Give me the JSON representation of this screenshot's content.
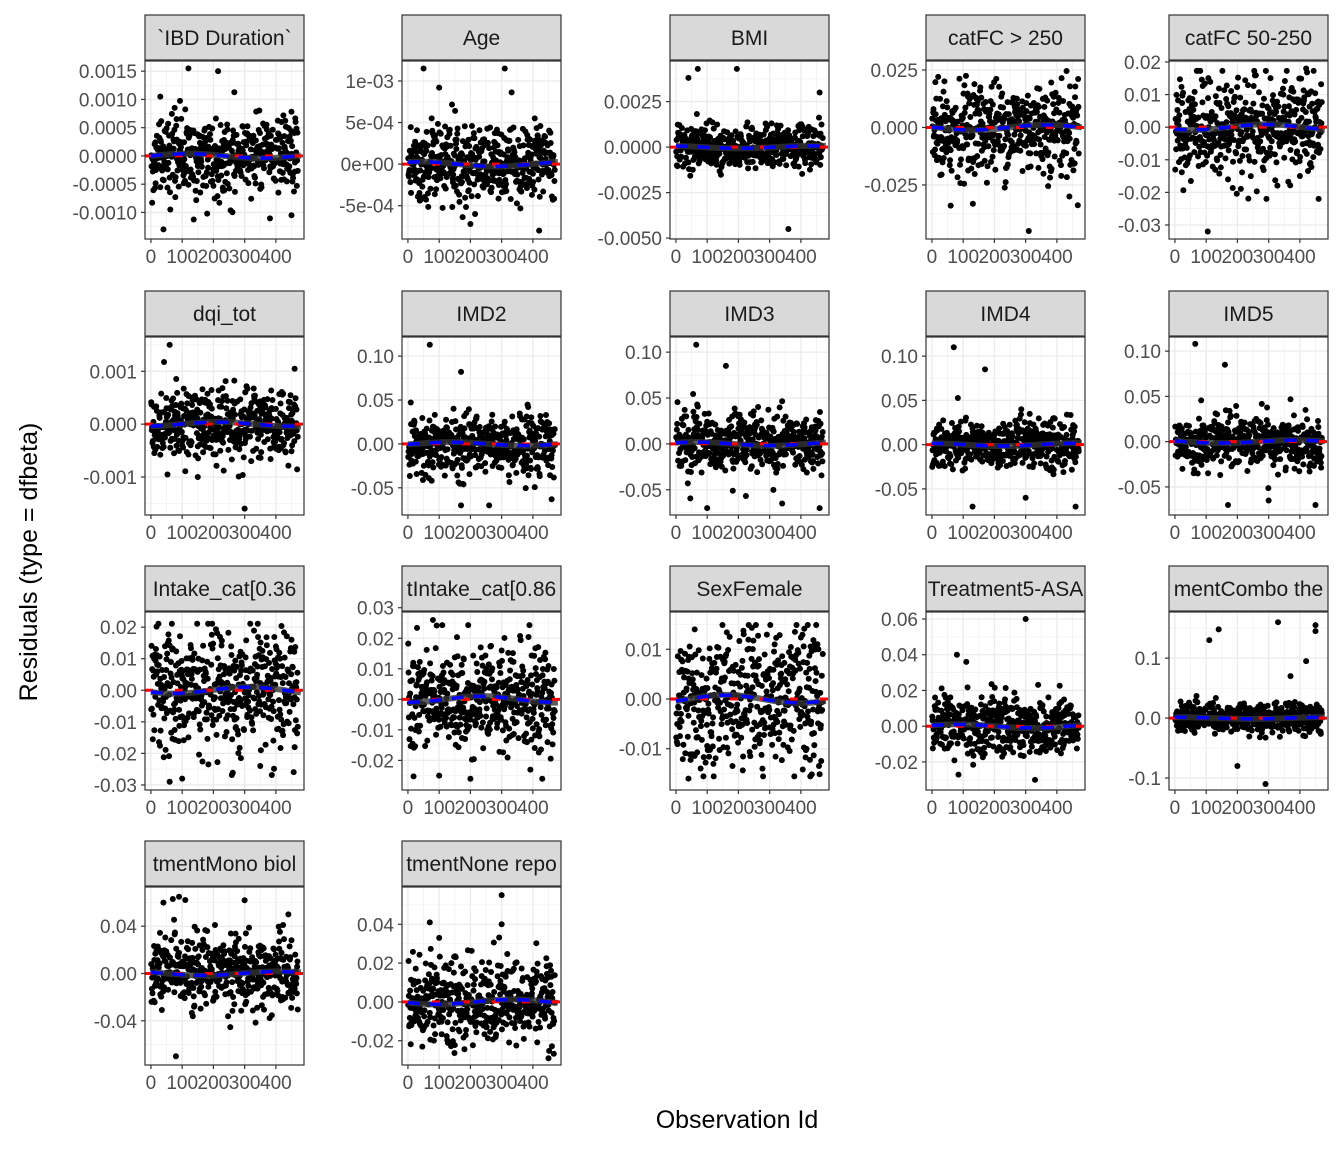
{
  "chart_data": {
    "type": "scatter",
    "xlabel": "Observation Id",
    "ylabel": "Residuals (type = dfbeta)",
    "n_obs": 470,
    "xlim": [
      -19,
      490
    ],
    "xticks": [
      0,
      100,
      200,
      300,
      400
    ],
    "xtick_labels": [
      "0",
      "100",
      "200",
      "300",
      "400"
    ],
    "grid": true,
    "reference_line": {
      "y": 0,
      "color": "#ff0000",
      "style": "dashed"
    },
    "smooth_color": "#0000ff",
    "loess_color": "#333333",
    "panels": [
      {
        "label": "`IBD Duration`",
        "ylim": [
          -0.00147,
          0.00168
        ],
        "yticks": [
          0.0015,
          0.001,
          0.0005,
          0,
          -0.0005,
          -0.001
        ],
        "ytick_labels": [
          "0.0015",
          "0.0010",
          "0.0005",
          "0.0000",
          "-0.0005",
          "-0.0010"
        ],
        "sd": 0.00035,
        "outliers": [
          [
            40,
            -0.0013
          ],
          [
            120,
            0.00155
          ],
          [
            215,
            0.0015
          ],
          [
            450,
            -0.00105
          ],
          [
            30,
            0.00105
          ]
        ]
      },
      {
        "label": "Age",
        "ylim": [
          -0.0009,
          0.00124
        ],
        "yticks": [
          0.001,
          0.0005,
          0,
          -0.0005
        ],
        "ytick_labels": [
          "1e-03",
          "5e-04",
          "0e+00",
          "-5e-04"
        ],
        "sd": 0.00025,
        "outliers": [
          [
            50,
            0.00115
          ],
          [
            310,
            0.00115
          ],
          [
            100,
            0.00092
          ],
          [
            420,
            -0.0008
          ],
          [
            200,
            -0.00072
          ]
        ]
      },
      {
        "label": "BMI",
        "ylim": [
          -0.00505,
          0.00473
        ],
        "yticks": [
          0.0025,
          0,
          -0.0025,
          -0.005
        ],
        "ytick_labels": [
          "0.0025",
          "0.0000",
          "-0.0025",
          "-0.0050"
        ],
        "sd": 0.0006,
        "outliers": [
          [
            70,
            0.0043
          ],
          [
            195,
            0.0043
          ],
          [
            360,
            -0.0045
          ],
          [
            460,
            0.003
          ],
          [
            40,
            0.0038
          ]
        ]
      },
      {
        "label": "catFC > 250",
        "ylim": [
          -0.0485,
          0.0289
        ],
        "yticks": [
          0.025,
          0,
          -0.025
        ],
        "ytick_labels": [
          "0.025",
          "0.000",
          "-0.025"
        ],
        "sd": 0.01,
        "outliers": [
          [
            310,
            -0.045
          ],
          [
            60,
            -0.034
          ],
          [
            20,
            0.022
          ],
          [
            440,
            -0.03
          ]
        ]
      },
      {
        "label": "catFC 50-250",
        "ylim": [
          -0.0343,
          0.0203
        ],
        "yticks": [
          0.02,
          0.01,
          0,
          -0.01,
          -0.02,
          -0.03
        ],
        "ytick_labels": [
          "0.02",
          "0.01",
          "0.00",
          "-0.01",
          "-0.02",
          "-0.03"
        ],
        "sd": 0.0075,
        "outliers": [
          [
            105,
            -0.032
          ],
          [
            460,
            -0.022
          ],
          [
            420,
            0.018
          ]
        ]
      },
      {
        "label": "dqi_tot",
        "ylim": [
          -0.00172,
          0.00165
        ],
        "yticks": [
          0.001,
          0,
          -0.001
        ],
        "ytick_labels": [
          "0.001",
          "0.000",
          "-0.001"
        ],
        "sd": 0.00035,
        "outliers": [
          [
            60,
            0.0015
          ],
          [
            300,
            -0.0016
          ],
          [
            150,
            -0.001
          ],
          [
            460,
            0.00105
          ]
        ]
      },
      {
        "label": "IMD2",
        "ylim": [
          -0.081,
          0.1218
        ],
        "yticks": [
          0.1,
          0.05,
          0,
          -0.05
        ],
        "ytick_labels": [
          "0.10",
          "0.05",
          "0.00",
          "-0.05"
        ],
        "sd": 0.017,
        "outliers": [
          [
            70,
            0.113
          ],
          [
            170,
            0.082
          ],
          [
            170,
            -0.07
          ],
          [
            460,
            -0.063
          ],
          [
            260,
            -0.07
          ]
        ]
      },
      {
        "label": "IMD3",
        "ylim": [
          -0.0775,
          0.1165
        ],
        "yticks": [
          0.1,
          0.05,
          0,
          -0.05
        ],
        "ytick_labels": [
          "0.10",
          "0.05",
          "0.00",
          "-0.05"
        ],
        "sd": 0.017,
        "outliers": [
          [
            65,
            0.108
          ],
          [
            160,
            0.085
          ],
          [
            100,
            -0.07
          ],
          [
            460,
            -0.07
          ],
          [
            340,
            -0.065
          ]
        ]
      },
      {
        "label": "IMD4",
        "ylim": [
          -0.0795,
          0.1216
        ],
        "yticks": [
          0.1,
          0.05,
          0,
          -0.05
        ],
        "ytick_labels": [
          "0.10",
          "0.05",
          "0.00",
          "-0.05"
        ],
        "sd": 0.014,
        "outliers": [
          [
            70,
            0.11
          ],
          [
            170,
            0.085
          ],
          [
            130,
            -0.07
          ],
          [
            460,
            -0.07
          ],
          [
            300,
            -0.06
          ]
        ]
      },
      {
        "label": "IMD5",
        "ylim": [
          -0.081,
          0.1156
        ],
        "yticks": [
          0.1,
          0.05,
          0,
          -0.05
        ],
        "ytick_labels": [
          "0.10",
          "0.05",
          "0.00",
          "-0.05"
        ],
        "sd": 0.014,
        "outliers": [
          [
            65,
            0.108
          ],
          [
            160,
            0.085
          ],
          [
            170,
            -0.07
          ],
          [
            450,
            -0.07
          ],
          [
            300,
            -0.065
          ]
        ]
      },
      {
        "label": "Intake_cat[0.36",
        "ylim": [
          -0.0316,
          0.0248
        ],
        "yticks": [
          0.02,
          0.01,
          0,
          -0.01,
          -0.02,
          -0.03
        ],
        "ytick_labels": [
          "0.02",
          "0.01",
          "0.00",
          "-0.01",
          "-0.02",
          "-0.03"
        ],
        "sd": 0.009,
        "outliers": [
          [
            60,
            -0.029
          ],
          [
            100,
            -0.028
          ],
          [
            350,
            -0.024
          ],
          [
            460,
            -0.018
          ]
        ]
      },
      {
        "label": "tIntake_cat[0.86",
        "ylim": [
          -0.0297,
          0.0286
        ],
        "yticks": [
          0.03,
          0.02,
          0.01,
          0,
          -0.01,
          -0.02
        ],
        "ytick_labels": [
          "0.03",
          "0.02",
          "0.01",
          "0.00",
          "-0.01",
          "-0.02"
        ],
        "sd": 0.009,
        "outliers": [
          [
            100,
            -0.025
          ],
          [
            200,
            -0.026
          ],
          [
            430,
            -0.026
          ],
          [
            80,
            0.026
          ]
        ]
      },
      {
        "label": "SexFemale",
        "ylim": [
          -0.0183,
          0.0175
        ],
        "yticks": [
          0.01,
          0,
          -0.01
        ],
        "ytick_labels": [
          "0.01",
          "0.00",
          "-0.01"
        ],
        "sd": 0.007,
        "outliers": [
          [
            60,
            0.014
          ],
          [
            40,
            -0.016
          ]
        ]
      },
      {
        "label": "Treatment5-ASA",
        "ylim": [
          -0.0357,
          0.0639
        ],
        "yticks": [
          0.06,
          0.04,
          0.02,
          0,
          -0.02
        ],
        "ytick_labels": [
          "0.06",
          "0.04",
          "0.02",
          "0.00",
          "-0.02"
        ],
        "sd": 0.009,
        "outliers": [
          [
            300,
            0.06
          ],
          [
            80,
            0.04
          ],
          [
            110,
            0.036
          ],
          [
            330,
            -0.03
          ]
        ]
      },
      {
        "label": "mentCombo the",
        "ylim": [
          -0.12,
          0.177
        ],
        "yticks": [
          0.1,
          0,
          -0.1
        ],
        "ytick_labels": [
          "0.1",
          "0.0",
          "-0.1"
        ],
        "sd": 0.012,
        "outliers": [
          [
            140,
            0.148
          ],
          [
            110,
            0.13
          ],
          [
            330,
            0.16
          ],
          [
            450,
            0.155
          ],
          [
            450,
            0.145
          ],
          [
            420,
            0.095
          ],
          [
            290,
            -0.11
          ],
          [
            200,
            -0.08
          ],
          [
            370,
            0.07
          ]
        ]
      },
      {
        "label": "tmentMono biol",
        "ylim": [
          -0.0774,
          0.0732
        ],
        "yticks": [
          0.04,
          0,
          -0.04
        ],
        "ytick_labels": [
          "0.04",
          "0.00",
          "-0.04"
        ],
        "sd": 0.015,
        "outliers": [
          [
            70,
            0.063
          ],
          [
            90,
            0.065
          ],
          [
            40,
            0.06
          ],
          [
            440,
            0.05
          ],
          [
            80,
            -0.07
          ],
          [
            300,
            0.062
          ]
        ]
      },
      {
        "label": "tmentNone repo",
        "ylim": [
          -0.0325,
          0.0592
        ],
        "yticks": [
          0.04,
          0.02,
          0,
          -0.02
        ],
        "ytick_labels": [
          "0.04",
          "0.02",
          "0.00",
          "-0.02"
        ],
        "sd": 0.011,
        "outliers": [
          [
            300,
            0.055
          ],
          [
            70,
            0.041
          ],
          [
            100,
            0.033
          ],
          [
            300,
            0.04
          ],
          [
            450,
            -0.029
          ]
        ]
      }
    ]
  }
}
